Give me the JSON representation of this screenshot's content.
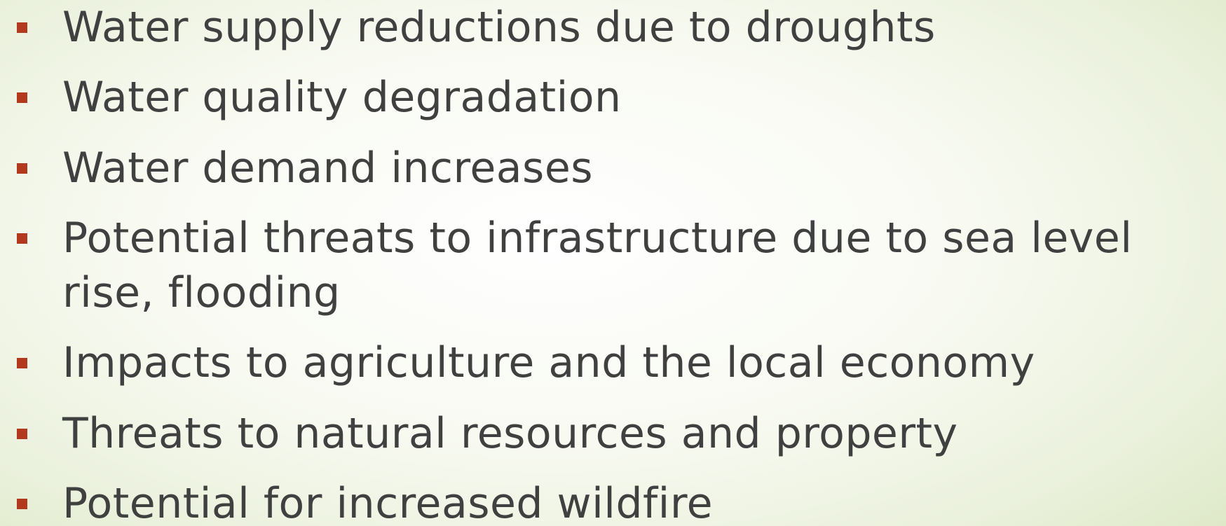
{
  "bullets": [
    "Water supply reductions due to droughts",
    "Water quality degradation",
    "Water demand increases",
    "Potential threats to infrastructure due to sea level rise, flooding",
    "Impacts to agriculture and the local economy",
    "Threats to natural resources and property",
    "Potential for increased wildfire"
  ]
}
